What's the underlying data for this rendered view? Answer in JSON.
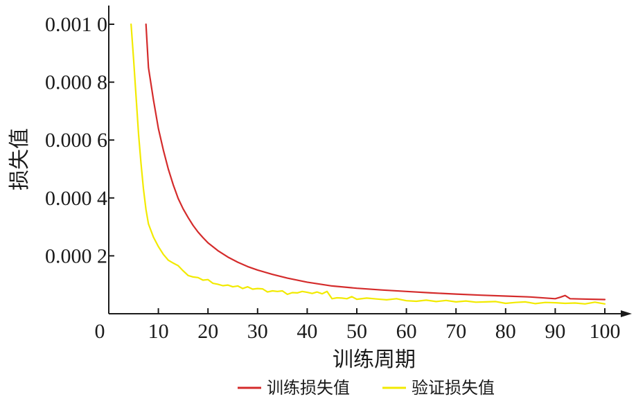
{
  "chart_data": {
    "type": "line",
    "xlabel": "训练周期",
    "ylabel": "损失值",
    "xlim": [
      0,
      100
    ],
    "ylim": [
      0,
      0.001
    ],
    "x_ticks": [
      {
        "value": 0,
        "label": "0"
      },
      {
        "value": 10,
        "label": "10"
      },
      {
        "value": 20,
        "label": "20"
      },
      {
        "value": 30,
        "label": "30"
      },
      {
        "value": 40,
        "label": "40"
      },
      {
        "value": 50,
        "label": "50"
      },
      {
        "value": 60,
        "label": "60"
      },
      {
        "value": 70,
        "label": "70"
      },
      {
        "value": 80,
        "label": "80"
      },
      {
        "value": 90,
        "label": "90"
      },
      {
        "value": 100,
        "label": "100"
      }
    ],
    "y_ticks": [
      {
        "value": 0.0002,
        "label": "0.000 2"
      },
      {
        "value": 0.0004,
        "label": "0.000 4"
      },
      {
        "value": 0.0006,
        "label": "0.000 6"
      },
      {
        "value": 0.0008,
        "label": "0.000 8"
      },
      {
        "value": 0.001,
        "label": "0.001 0"
      }
    ],
    "grid": false,
    "legend_position": "bottom",
    "series": [
      {
        "name": "训练损失值",
        "color": "#d42b2b",
        "x": [
          7.5,
          8,
          9,
          10,
          11,
          12,
          13,
          14,
          15,
          16,
          17,
          18,
          19,
          20,
          22,
          24,
          26,
          28,
          30,
          33,
          36,
          40,
          45,
          50,
          55,
          60,
          65,
          70,
          75,
          80,
          85,
          90,
          91,
          92,
          93,
          95,
          100
        ],
        "y": [
          0.001,
          0.00085,
          0.00074,
          0.00064,
          0.000565,
          0.0005,
          0.000445,
          0.000398,
          0.000362,
          0.000332,
          0.000305,
          0.000282,
          0.000263,
          0.000245,
          0.000218,
          0.000196,
          0.000178,
          0.000163,
          0.000151,
          0.000136,
          0.000123,
          0.000109,
          9.6e-05,
          8.8e-05,
          8.2e-05,
          7.7e-05,
          7.2e-05,
          6.8e-05,
          6.4e-05,
          6.1e-05,
          5.8e-05,
          5.2e-05,
          5.7e-05,
          6.3e-05,
          5.2e-05,
          5.1e-05,
          4.9e-05
        ]
      },
      {
        "name": "验证损失值",
        "color": "#f2ea00",
        "x": [
          4.5,
          5,
          5.5,
          6,
          6.5,
          7,
          7.5,
          8,
          9,
          10,
          11,
          12,
          13,
          14,
          15,
          16,
          17,
          18,
          19,
          20,
          21,
          22,
          23,
          24,
          25,
          26,
          27,
          28,
          29,
          30,
          31,
          32,
          33,
          34,
          35,
          36,
          37,
          38,
          39,
          40,
          41,
          42,
          43,
          44,
          45,
          46,
          47,
          48,
          49,
          50,
          52,
          54,
          56,
          58,
          60,
          62,
          64,
          66,
          68,
          70,
          72,
          74,
          76,
          78,
          80,
          82,
          84,
          86,
          88,
          90,
          92,
          94,
          96,
          98,
          100
        ],
        "y": [
          0.001,
          0.00088,
          0.00075,
          0.00062,
          0.00052,
          0.00043,
          0.00036,
          0.00031,
          0.000265,
          0.000232,
          0.000205,
          0.000185,
          0.000175,
          0.000166,
          0.000148,
          0.000132,
          0.000127,
          0.000125,
          0.000116,
          0.000118,
          0.000105,
          0.000102,
          9.7e-05,
          9.9e-05,
          9.3e-05,
          9.6e-05,
          8.7e-05,
          9.3e-05,
          8.5e-05,
          8.7e-05,
          8.6e-05,
          7.5e-05,
          7.9e-05,
          7.7e-05,
          7.9e-05,
          6.7e-05,
          7.3e-05,
          7.2e-05,
          7.7e-05,
          7.4e-05,
          7e-05,
          7.5e-05,
          6.9e-05,
          7.7e-05,
          5.2e-05,
          5.5e-05,
          5.4e-05,
          5.2e-05,
          5.9e-05,
          5e-05,
          5.4e-05,
          5.1e-05,
          4.8e-05,
          5.2e-05,
          4.5e-05,
          4.3e-05,
          4.7e-05,
          4.2e-05,
          4.6e-05,
          4.1e-05,
          4.4e-05,
          4e-05,
          4.1e-05,
          4.2e-05,
          3.6e-05,
          3.9e-05,
          4.1e-05,
          3.5e-05,
          3.9e-05,
          3.8e-05,
          3.6e-05,
          3.7e-05,
          3.4e-05,
          4e-05,
          3.4e-05
        ]
      }
    ]
  }
}
